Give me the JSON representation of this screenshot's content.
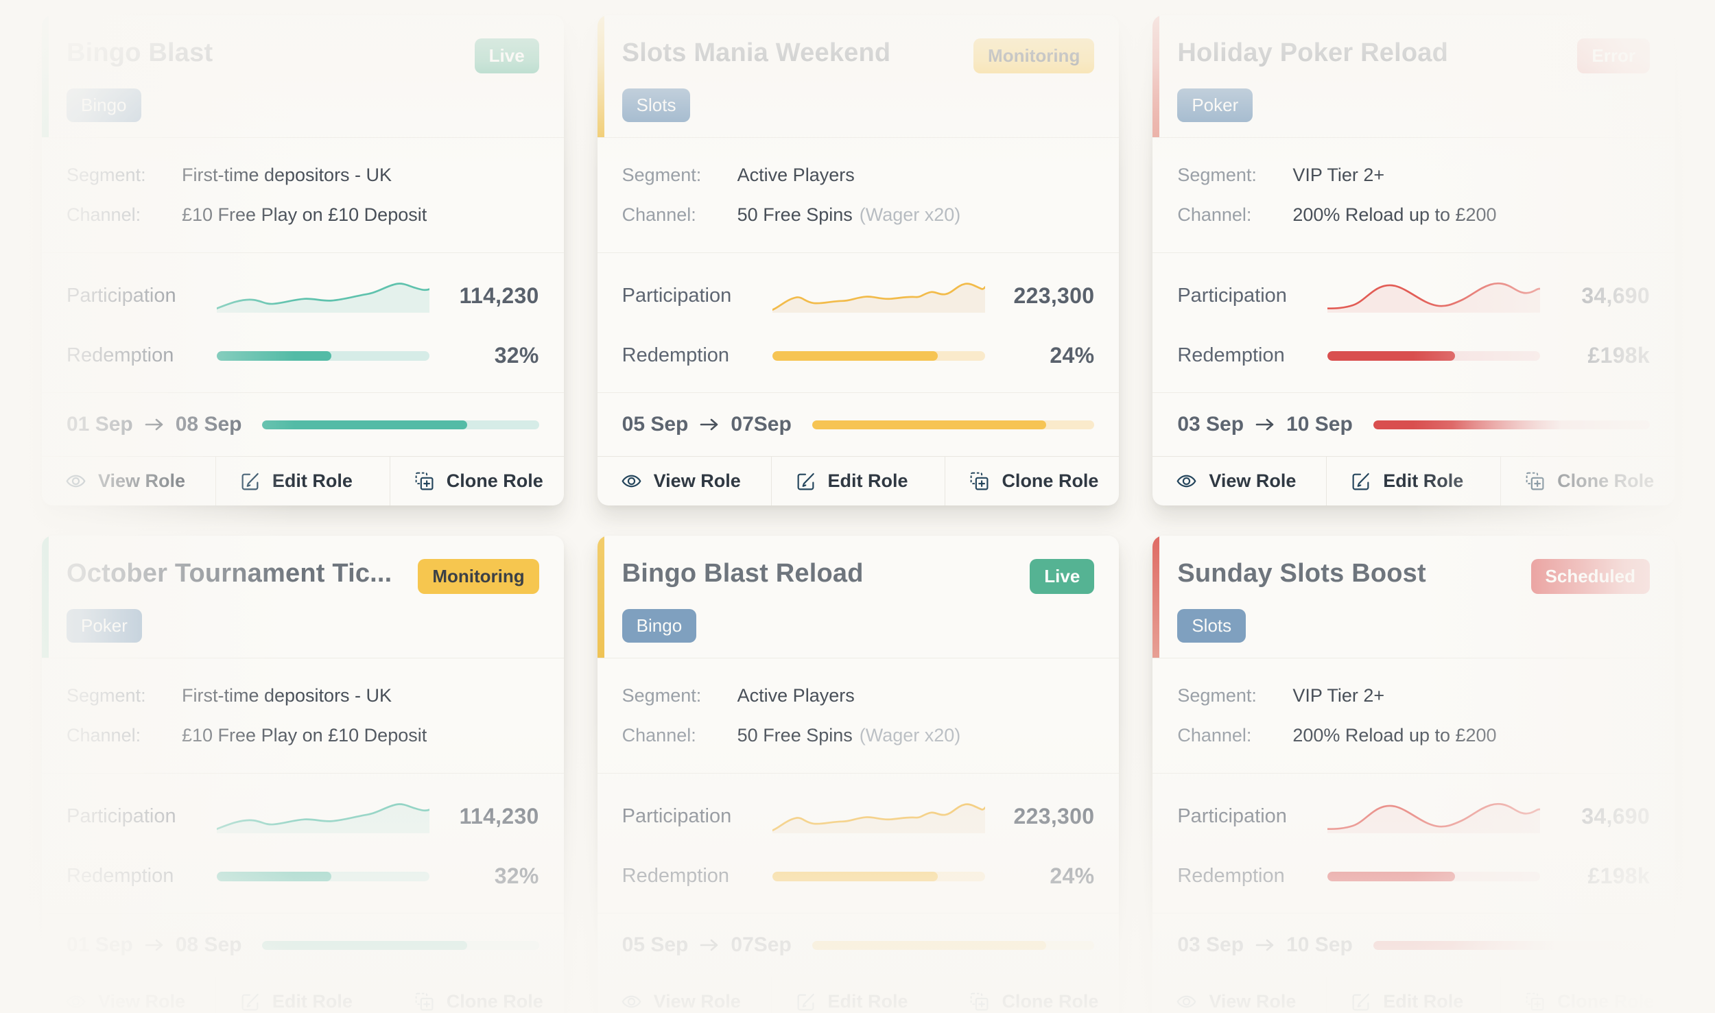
{
  "page": {
    "background": "#f9f7f3",
    "card_background": "#fbfaf7"
  },
  "labels": {
    "segment": "Segment:",
    "channel": "Channel:",
    "participation": "Participation",
    "redemption": "Redemption"
  },
  "actions": {
    "view": "View Role",
    "edit": "Edit Role",
    "clone": "Clone Role"
  },
  "themes": {
    "teal": {
      "accent": "#5bbfa0",
      "accent2": "#7ccbb0",
      "stroke": "#5fc2ad",
      "area": "rgba(95,194,173,0.14)",
      "fill": "#53bba6",
      "track": "#d6ece7"
    },
    "yellow": {
      "accent": "#f2cd6b",
      "accent2": "#efc355",
      "stroke": "#f2bb4a",
      "area": "rgba(210,160,80,0.12)",
      "fill": "#f6c453",
      "track": "#faeacb"
    },
    "red": {
      "accent": "#df6b64",
      "accent2": "#e79f94",
      "stroke": "#e25c55",
      "area": "rgba(226,92,85,0.10)",
      "fill": "#d94f4f",
      "track": "#f6e3e2"
    }
  },
  "cards": [
    {
      "title": "Bingo Blast",
      "status": "Live",
      "status_bg": "#55b393",
      "status_fg": "#fdfdfb",
      "tag": "Bingo",
      "theme": "teal",
      "segment": "First-time depositors - UK",
      "channel": "£10 Free Play on £10 Deposit",
      "channel_note": "",
      "participation": "114,230",
      "redemption": "32%",
      "redemption_width": "54%",
      "date_width": "74%",
      "date_fade": false,
      "date_start": "01 Sep",
      "date_end": "08 Sep"
    },
    {
      "title": "Slots Mania Weekend",
      "status": "Monitoring",
      "status_bg": "#f6c64f",
      "status_fg": "#3b4046",
      "tag": "Slots",
      "theme": "yellow",
      "segment": "Active Players",
      "channel": "50 Free Spins",
      "channel_note": "(Wager x20)",
      "participation": "223,300",
      "redemption": "24%",
      "redemption_width": "78%",
      "date_width": "83%",
      "date_fade": false,
      "date_start": "05 Sep",
      "date_end": "07Sep"
    },
    {
      "title": "Holiday Poker Reload",
      "status": "Error",
      "status_bg": "#de5c5c",
      "status_fg": "#fdfdfb",
      "tag": "Poker",
      "theme": "red",
      "segment": "VIP Tier 2+",
      "channel": "200% Reload up to £200",
      "channel_note": "",
      "participation": "34,690",
      "redemption": "£198k",
      "redemption_width": "60%",
      "date_width": "68%",
      "date_fade": true,
      "date_start": "03 Sep",
      "date_end": "10 Sep"
    },
    {
      "title": "October Tournament Tic...",
      "status": "Monitoring",
      "status_bg": "#f6c64f",
      "status_fg": "#3b4046",
      "tag": "Poker",
      "theme": "teal",
      "segment": "First-time depositors - UK",
      "channel": "£10 Free Play on £10 Deposit",
      "channel_note": "",
      "participation": "114,230",
      "redemption": "32%",
      "redemption_width": "54%",
      "date_width": "74%",
      "date_fade": false,
      "date_start": "01 Sep",
      "date_end": "08 Sep"
    },
    {
      "title": "Bingo Blast Reload",
      "status": "Live",
      "status_bg": "#55b393",
      "status_fg": "#fdfdfb",
      "tag": "Bingo",
      "theme": "yellow",
      "segment": "Active Players",
      "channel": "50 Free Spins",
      "channel_note": "(Wager x20)",
      "participation": "223,300",
      "redemption": "24%",
      "redemption_width": "78%",
      "date_width": "83%",
      "date_fade": false,
      "date_start": "05 Sep",
      "date_end": "07Sep"
    },
    {
      "title": "Sunday Slots Boost",
      "status": "Scheduled",
      "status_bg": "#de5c5c",
      "status_fg": "#fdfdfb",
      "tag": "Slots",
      "theme": "red",
      "segment": "VIP Tier 2+",
      "channel": "200% Reload up to £200",
      "channel_note": "",
      "participation": "34,690",
      "redemption": "£198k",
      "redemption_width": "60%",
      "date_width": "68%",
      "date_fade": true,
      "date_start": "03 Sep",
      "date_end": "10 Sep"
    }
  ]
}
